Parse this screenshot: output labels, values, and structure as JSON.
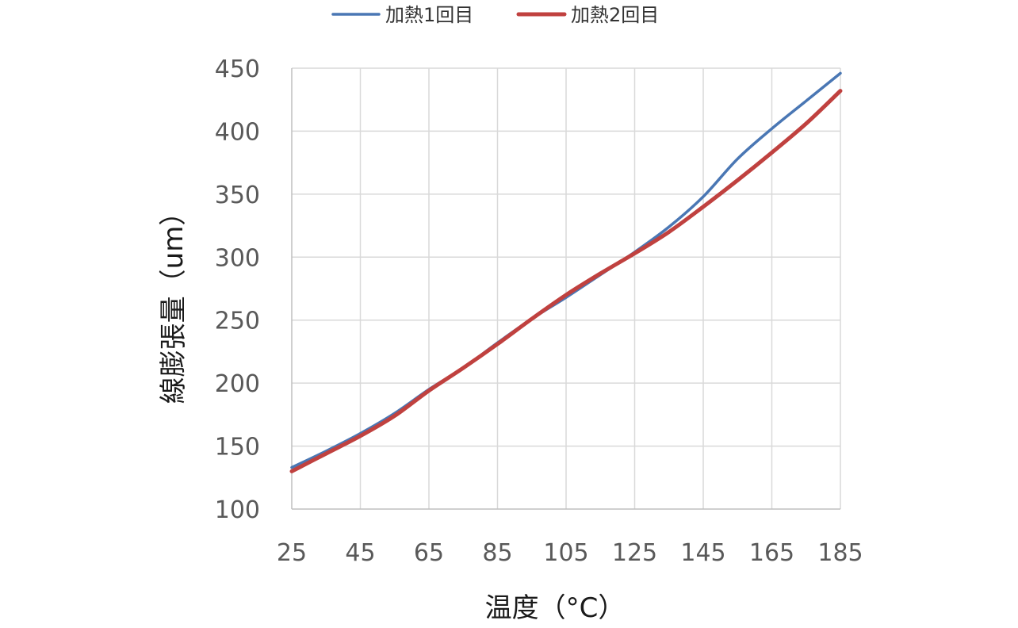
{
  "chart_data": {
    "type": "line",
    "title": "",
    "xlabel": "温度（°C）",
    "ylabel": "線膨張量（um）",
    "xlim": [
      25,
      185
    ],
    "ylim": [
      100,
      450
    ],
    "x_ticks": [
      "25",
      "45",
      "65",
      "85",
      "105",
      "125",
      "145",
      "165",
      "185"
    ],
    "y_ticks": [
      "100",
      "150",
      "200",
      "250",
      "300",
      "350",
      "400",
      "450"
    ],
    "grid": true,
    "legend_position": "top",
    "series": [
      {
        "name": "加熱1回目",
        "color": "#4a77b4",
        "x": [
          25,
          35,
          45,
          55,
          65,
          75,
          85,
          95,
          105,
          115,
          125,
          135,
          145,
          155,
          165,
          175,
          185
        ],
        "y": [
          133,
          146,
          160,
          176,
          195,
          212,
          232,
          251,
          268,
          286,
          304,
          324,
          348,
          378,
          402,
          424,
          446
        ]
      },
      {
        "name": "加熱2回目",
        "color": "#c0413f",
        "x": [
          25,
          35,
          45,
          55,
          65,
          75,
          85,
          95,
          105,
          115,
          125,
          135,
          145,
          155,
          165,
          175,
          185
        ],
        "y": [
          130,
          144,
          158,
          174,
          194,
          212,
          231,
          251,
          270,
          287,
          303,
          320,
          340,
          361,
          383,
          406,
          432
        ]
      }
    ]
  }
}
